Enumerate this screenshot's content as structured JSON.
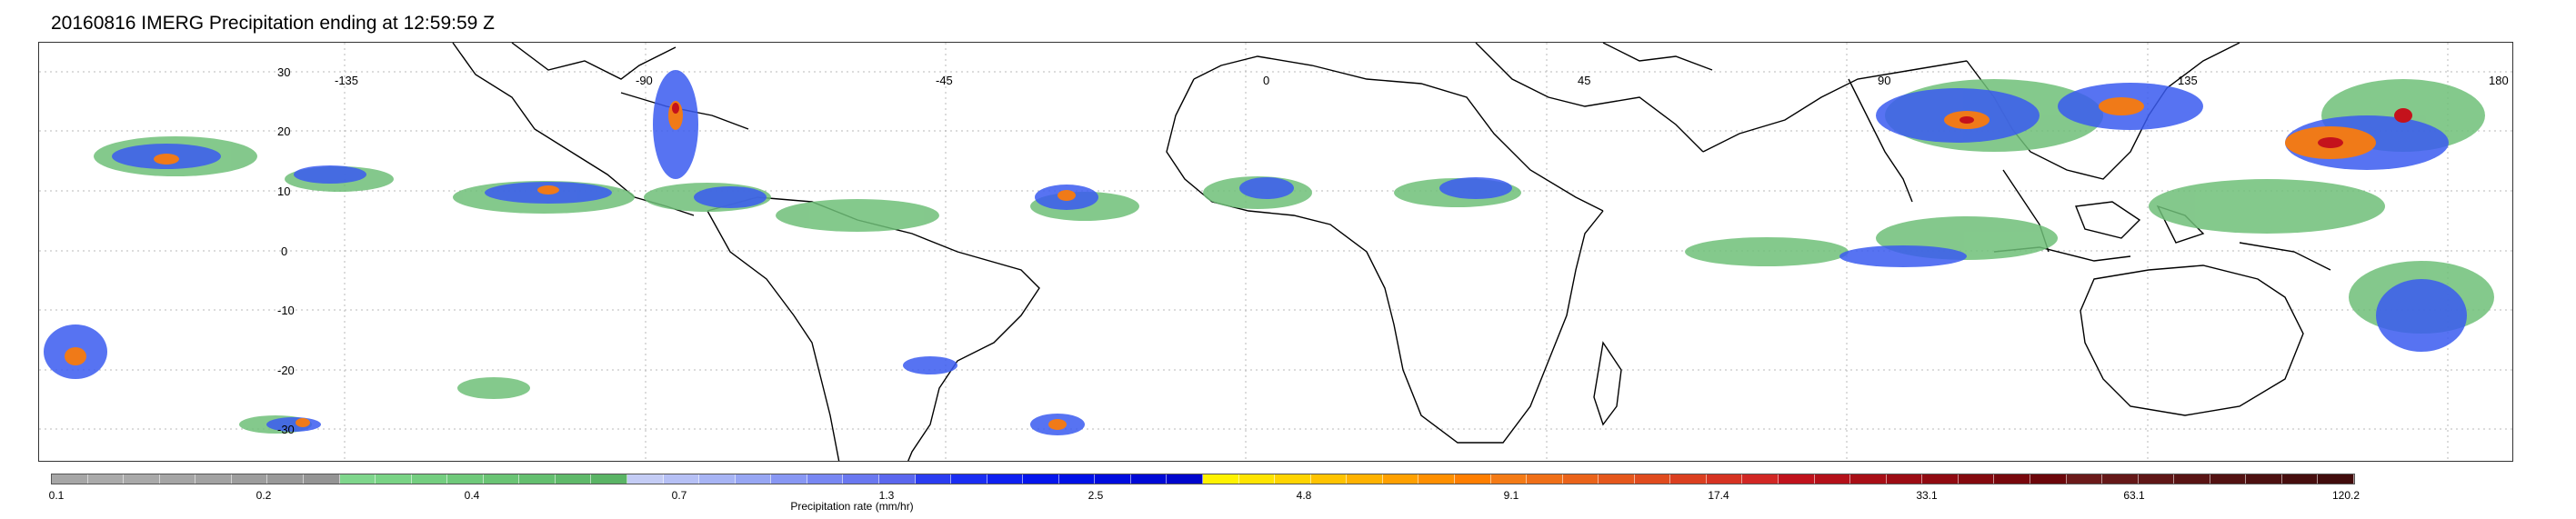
{
  "title": "20160816 IMERG Precipitation ending at 12:59:59 Z",
  "map": {
    "lat_labels": [
      "30",
      "20",
      "10",
      "0",
      "-10",
      "-20",
      "-30"
    ],
    "lon_labels": [
      "-135",
      "-90",
      "-45",
      "0",
      "45",
      "90",
      "135",
      "180"
    ],
    "coastline_color": "#000000",
    "grid_style": "dotted gray"
  },
  "colorbar": {
    "label": "Precipitation rate (mm/hr)",
    "ticks": [
      "0.1",
      "0.2",
      "0.4",
      "0.7",
      "1.3",
      "2.5",
      "4.8",
      "9.1",
      "17.4",
      "33.1",
      "63.1",
      "120.2"
    ],
    "colors": [
      "#a6a6a6",
      "#aaaaaa",
      "#a9a9a9",
      "#a5a5a5",
      "#a2a2a2",
      "#9d9d9d",
      "#999999",
      "#949494",
      "#7fd68c",
      "#79d385",
      "#74ce80",
      "#6fc97a",
      "#6ac474",
      "#64bf6f",
      "#5fb96a",
      "#5ab465",
      "#c4ccf5",
      "#b6c0f5",
      "#a7b4f4",
      "#97a6f3",
      "#8897f3",
      "#7887f2",
      "#6a78f0",
      "#5b67ee",
      "#2a3cf0",
      "#1a2df2",
      "#0e20f0",
      "#0515ec",
      "#0010e6",
      "#000cde",
      "#0009d6",
      "#0006cc",
      "#fff200",
      "#ffe400",
      "#ffd400",
      "#ffc300",
      "#ffb200",
      "#ffa000",
      "#ff8f00",
      "#ff7e00",
      "#f47b16",
      "#ef6f18",
      "#ea631a",
      "#e5571c",
      "#e04b1e",
      "#db3f20",
      "#d63322",
      "#d12724",
      "#c0121c",
      "#b41019",
      "#a80e16",
      "#9c0c14",
      "#900a11",
      "#84090e",
      "#78070c",
      "#6c060a",
      "#6b1a1a",
      "#651818",
      "#5f1616",
      "#591414",
      "#531212",
      "#4d1010",
      "#470e0e",
      "#410c0c"
    ]
  }
}
